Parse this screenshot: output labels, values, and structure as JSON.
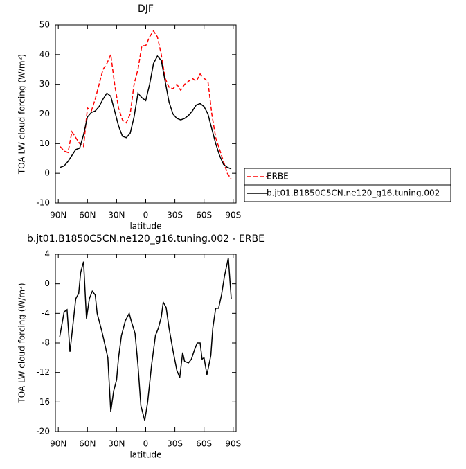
{
  "chart_data": [
    {
      "type": "line",
      "title": "DJF",
      "xlabel": "latitude",
      "ylabel": "TOA LW cloud forcing (W/m²)",
      "x": [
        88,
        84,
        80,
        76,
        72,
        68,
        64,
        60,
        56,
        52,
        48,
        44,
        40,
        36,
        32,
        28,
        24,
        20,
        16,
        12,
        8,
        4,
        0,
        -4,
        -8,
        -12,
        -16,
        -20,
        -24,
        -28,
        -32,
        -36,
        -40,
        -44,
        -48,
        -52,
        -56,
        -60,
        -64,
        -68,
        -72,
        -76,
        -80,
        -84,
        -88
      ],
      "series": [
        {
          "name": "ERBE",
          "color": "#ff0000",
          "dash": true,
          "values": [
            9,
            7.5,
            7,
            14,
            12,
            10,
            9,
            22,
            21,
            25,
            30,
            35,
            37,
            40,
            30,
            22,
            18,
            17,
            20,
            30,
            35,
            43,
            43,
            46,
            48,
            46,
            40,
            32,
            29,
            28.5,
            30,
            28,
            30,
            31,
            32,
            31,
            33.5,
            32,
            31,
            20,
            12,
            8,
            4,
            0,
            -2
          ]
        },
        {
          "name": "b.jt01.B1850C5CN.ne120_g16.tuning.002",
          "color": "#000000",
          "dash": false,
          "values": [
            2,
            2.5,
            4,
            6,
            8,
            8.5,
            13,
            19,
            20.5,
            21,
            22.5,
            25,
            27,
            26,
            21,
            16,
            12.5,
            12,
            13.5,
            19,
            27,
            25.5,
            24.5,
            30,
            37,
            39.5,
            38,
            31,
            24,
            20,
            18.5,
            18,
            18.5,
            19.5,
            21,
            23,
            23.5,
            22.5,
            20,
            15,
            10,
            6,
            3,
            2,
            1.5
          ]
        }
      ],
      "xlim": [
        93,
        -93
      ],
      "ylim": [
        -10,
        50
      ],
      "xticks": [
        {
          "value": 90,
          "label": "90N"
        },
        {
          "value": 60,
          "label": "60N"
        },
        {
          "value": 30,
          "label": "30N"
        },
        0,
        {
          "value": -30,
          "label": "30S"
        },
        {
          "value": -60,
          "label": "60S"
        },
        {
          "value": -90,
          "label": "90S"
        }
      ],
      "yticks": [
        -10,
        0,
        10,
        20,
        30,
        40,
        50
      ],
      "legend": "right"
    },
    {
      "type": "line",
      "title": "b.jt01.B1850C5CN.ne120_g16.tuning.002 - ERBE",
      "xlabel": "latitude",
      "ylabel": "TOA LW cloud forcing (W/m²)",
      "x": [
        88.6,
        84,
        81,
        78,
        72,
        69,
        67,
        64,
        61,
        58,
        55,
        52,
        50,
        45,
        39,
        36,
        33,
        30,
        28,
        25,
        21,
        17,
        15,
        11,
        8,
        5,
        1,
        -2,
        -6,
        -10,
        -13,
        -16,
        -18,
        -21,
        -24,
        -28,
        -32,
        -35,
        -38,
        -40,
        -44,
        -47,
        -50,
        -53,
        -56,
        -58,
        -60,
        -63,
        -67,
        -69,
        -72,
        -75,
        -78,
        -81,
        -85,
        -88
      ],
      "series": [
        {
          "color": "#000000",
          "dash": false,
          "values": [
            -7.2,
            -3.8,
            -3.5,
            -9.2,
            -2,
            -1.3,
            1.5,
            3,
            -4.7,
            -2,
            -1,
            -1.5,
            -4,
            -6.5,
            -10,
            -17.3,
            -14.5,
            -13,
            -10,
            -7,
            -5,
            -4,
            -5,
            -6.7,
            -11,
            -16.5,
            -18.5,
            -16,
            -11,
            -7,
            -6,
            -4.5,
            -2.5,
            -3.2,
            -6,
            -9,
            -11.7,
            -12.7,
            -9.3,
            -10.5,
            -10.7,
            -10.2,
            -9,
            -8,
            -8,
            -10.2,
            -10,
            -12.3,
            -9.7,
            -6,
            -3.3,
            -3.3,
            -1.5,
            1,
            3.5,
            -2
          ]
        }
      ],
      "xlim": [
        93,
        -93
      ],
      "ylim": [
        -20,
        4
      ],
      "xticks": [
        {
          "value": 90,
          "label": "90N"
        },
        {
          "value": 60,
          "label": "60N"
        },
        {
          "value": 30,
          "label": "30N"
        },
        0,
        {
          "value": -30,
          "label": "30S"
        },
        {
          "value": -60,
          "label": "60S"
        },
        {
          "value": -90,
          "label": "90S"
        }
      ],
      "yticks": [
        -20,
        -16,
        -12,
        -8,
        -4,
        0,
        4
      ]
    }
  ]
}
